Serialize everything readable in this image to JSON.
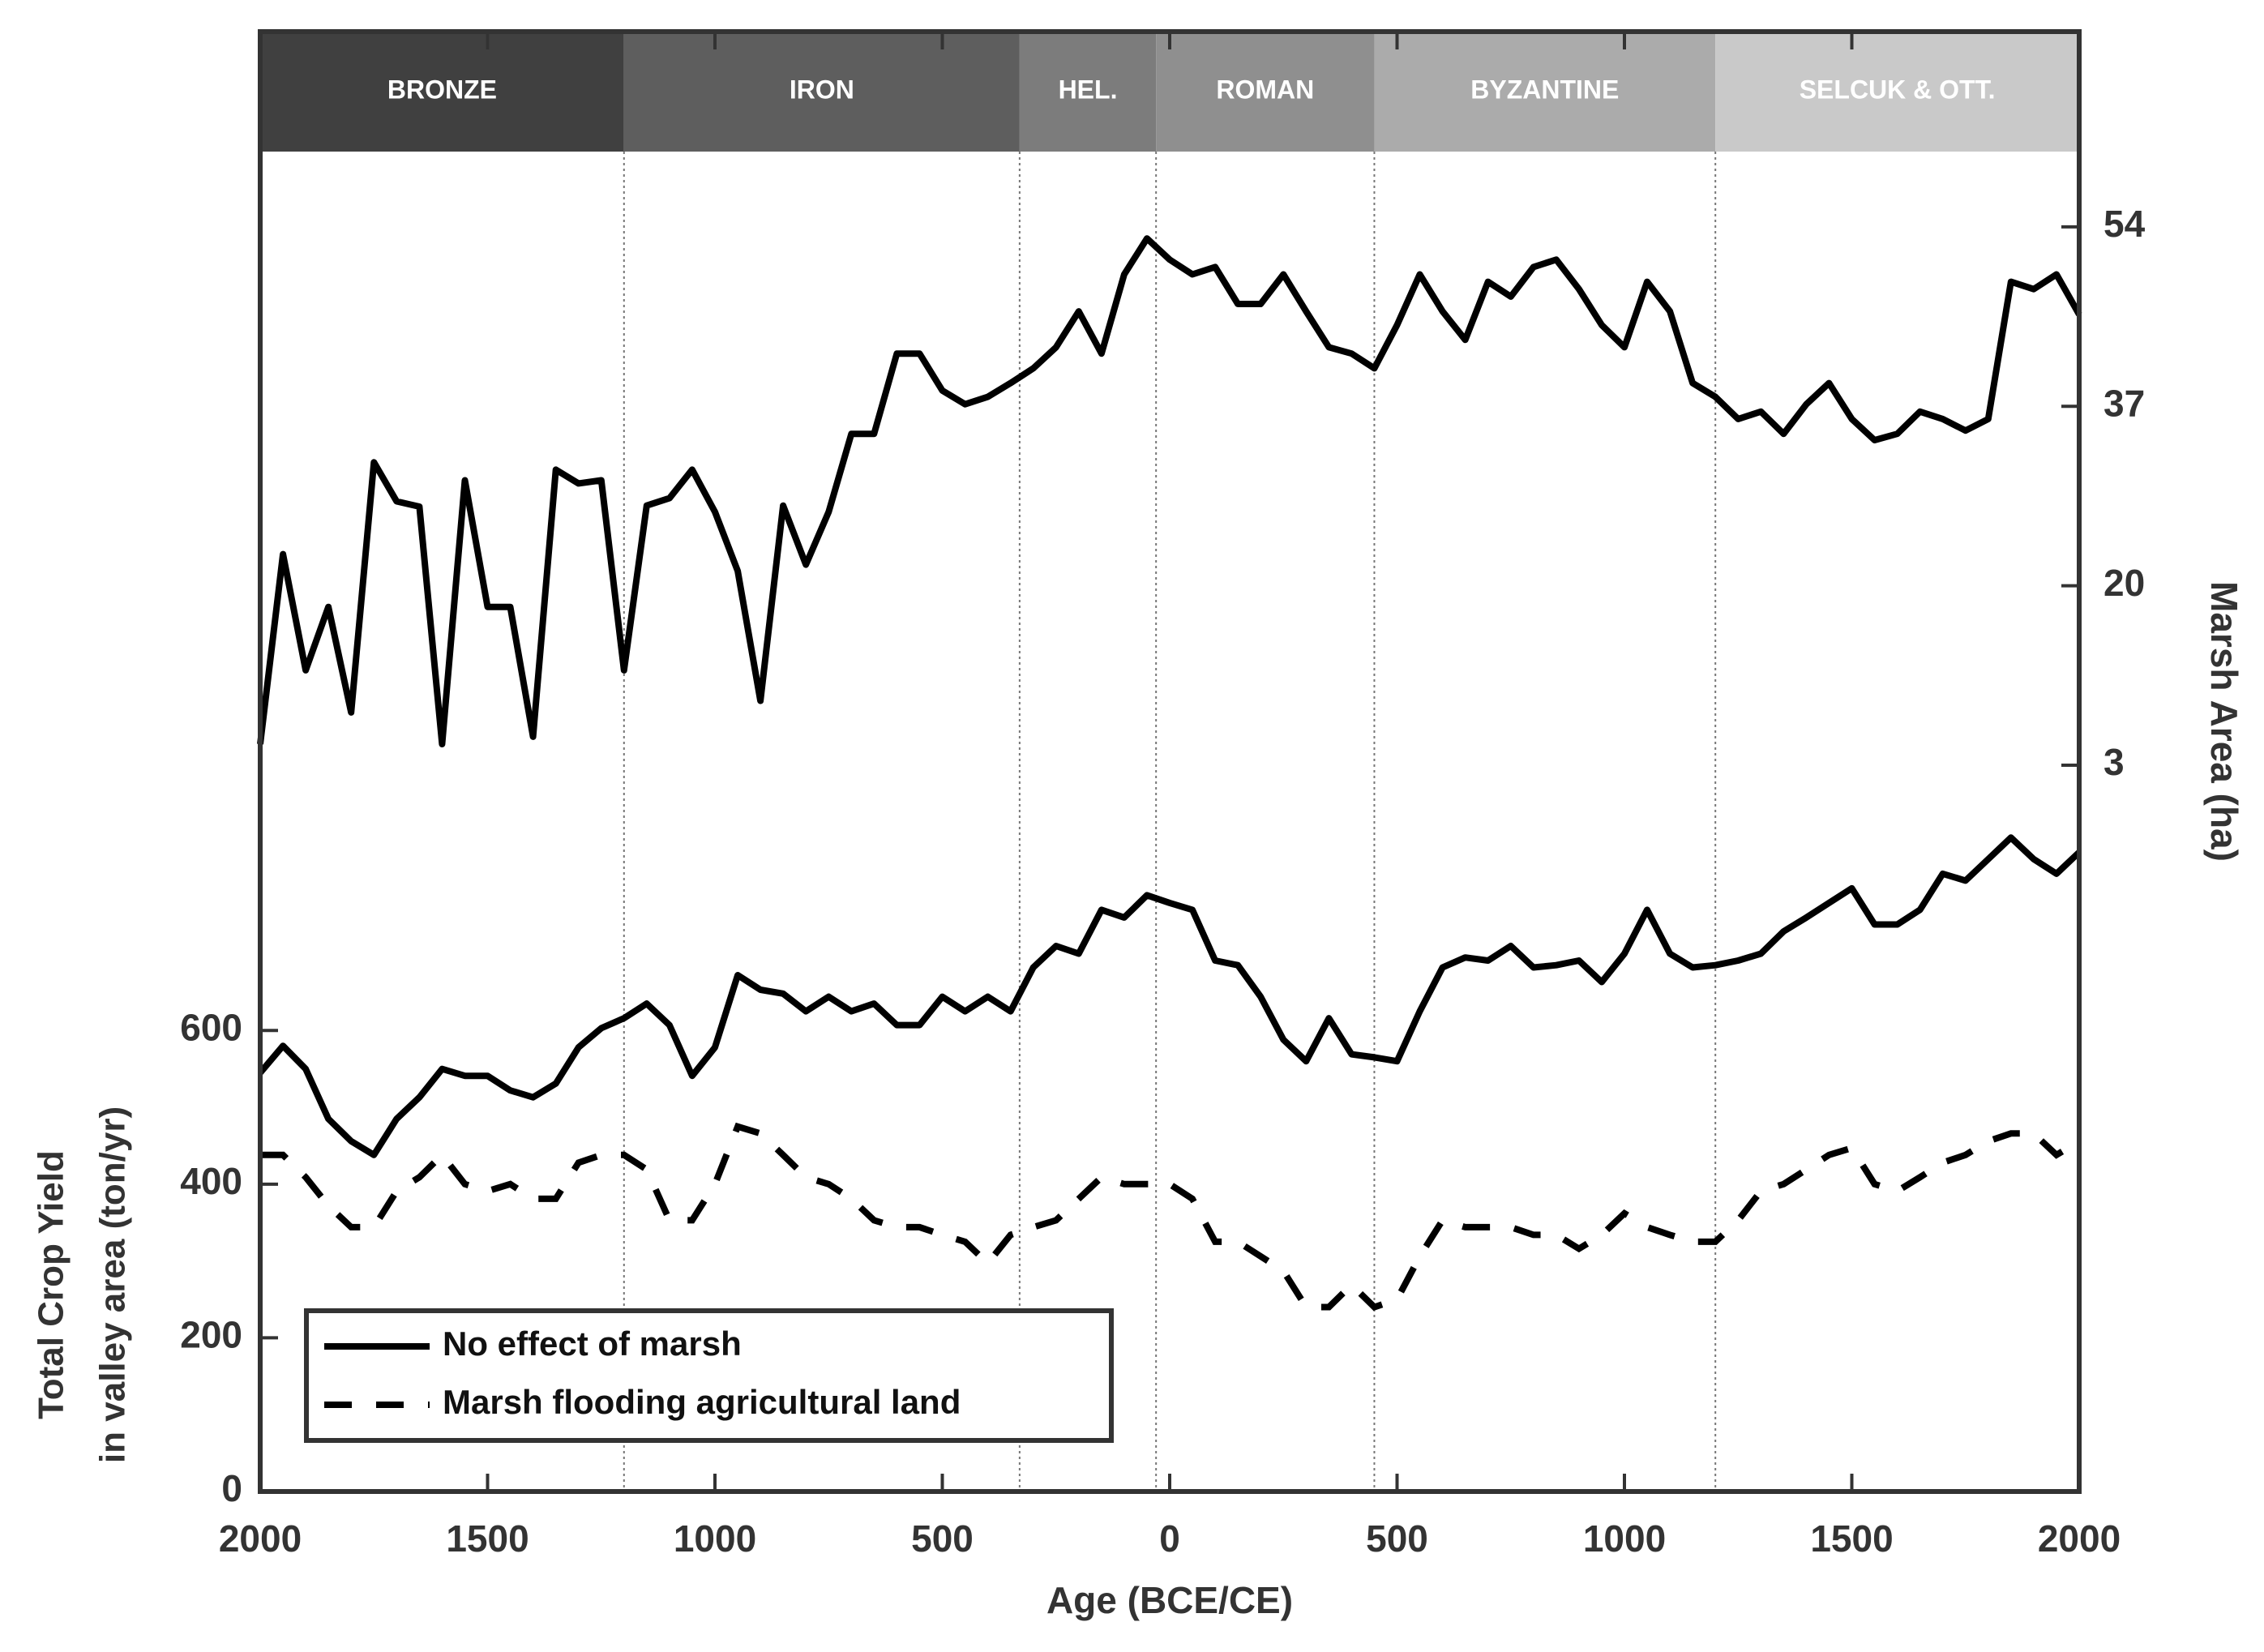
{
  "chart_data": {
    "type": "line",
    "xlabel": "Age (BCE/CE)",
    "ylabel": [
      "Total Crop Yield",
      "in valley area (ton/yr)"
    ],
    "y2label": "Marsh Area (ha)",
    "xlim": [
      -2000,
      2000
    ],
    "xticks": [
      {
        "value": -2000,
        "label": "2000"
      },
      {
        "value": -1500,
        "label": "1500"
      },
      {
        "value": -1000,
        "label": "1000"
      },
      {
        "value": -500,
        "label": "500"
      },
      0,
      500,
      1000,
      1500,
      2000
    ],
    "ylim": [
      0,
      1900
    ],
    "yticks": [
      0,
      200,
      400,
      600
    ],
    "y2lim": [
      -65.8,
      72.5
    ],
    "y2ticks": [
      3,
      20,
      37,
      54
    ],
    "periods": [
      {
        "label": "BRONZE",
        "start": -2000,
        "end": -1200,
        "color": "#404040"
      },
      {
        "label": "IRON",
        "start": -1200,
        "end": -330,
        "color": "#5e5e5e"
      },
      {
        "label": "HEL.",
        "start": -330,
        "end": -30,
        "color": "#7c7c7c"
      },
      {
        "label": "ROMAN",
        "start": -30,
        "end": 450,
        "color": "#8f8f8f"
      },
      {
        "label": "BYZANTINE",
        "start": 450,
        "end": 1200,
        "color": "#ababab"
      },
      {
        "label": "SELCUK & OTT.",
        "start": 1200,
        "end": 2000,
        "color": "#c9c9c9"
      }
    ],
    "x": [
      -2000,
      -1950,
      -1900,
      -1850,
      -1800,
      -1750,
      -1700,
      -1650,
      -1600,
      -1550,
      -1500,
      -1450,
      -1400,
      -1350,
      -1300,
      -1250,
      -1200,
      -1150,
      -1100,
      -1050,
      -1000,
      -950,
      -900,
      -850,
      -800,
      -750,
      -700,
      -650,
      -600,
      -550,
      -500,
      -450,
      -400,
      -350,
      -300,
      -250,
      -200,
      -150,
      -100,
      -50,
      0,
      50,
      100,
      150,
      200,
      250,
      300,
      350,
      400,
      450,
      500,
      550,
      600,
      650,
      700,
      750,
      800,
      850,
      900,
      950,
      1000,
      1050,
      1100,
      1150,
      1200,
      1250,
      1300,
      1350,
      1400,
      1450,
      1500,
      1550,
      1600,
      1650,
      1700,
      1750,
      1800,
      1850,
      1900,
      1950,
      2000
    ],
    "legend": "lower left",
    "series": [
      {
        "axis": "y2",
        "color": "#000000",
        "style": "solid",
        "values": [
          5.0,
          23,
          12,
          18,
          8,
          31.7,
          28,
          27.5,
          5,
          30,
          18,
          18,
          5.7,
          31,
          29.7,
          30,
          12,
          27.6,
          28.3,
          31,
          27,
          21.4,
          9.1,
          27.6,
          22,
          27,
          34.4,
          34.4,
          42,
          42,
          38.5,
          37.2,
          37.9,
          39.2,
          40.6,
          42.6,
          46,
          42,
          49.5,
          52.9,
          50.9,
          49.5,
          50.2,
          46.7,
          46.7,
          49.5,
          46,
          42.6,
          42,
          40.6,
          44.7,
          49.5,
          46,
          43.3,
          48.8,
          47.4,
          50.2,
          50.9,
          48.1,
          44.7,
          42.6,
          48.8,
          46,
          39.2,
          37.9,
          35.8,
          36.5,
          34.4,
          37.2,
          39.2,
          35.8,
          33.8,
          34.4,
          36.5,
          35.8,
          34.7,
          35.8,
          48.8,
          48.1,
          49.5,
          45.7
        ]
      },
      {
        "name": "No effect of marsh",
        "color": "#000000",
        "style": "solid",
        "values": [
          545,
          580,
          550,
          485,
          456,
          438,
          485,
          513,
          550,
          541,
          541,
          522,
          513,
          531,
          578,
          603,
          616,
          635,
          607,
          541,
          578,
          672,
          653,
          648,
          625,
          644,
          625,
          635,
          607,
          607,
          644,
          625,
          644,
          625,
          682,
          710,
          700,
          757,
          747,
          776,
          766,
          757,
          691,
          685,
          644,
          588,
          560,
          616,
          569,
          565,
          560,
          625,
          682,
          695,
          691,
          710,
          682,
          685,
          691,
          663,
          700,
          757,
          700,
          682,
          685,
          691,
          700,
          729,
          747,
          766,
          785,
          738,
          738,
          757,
          804,
          795,
          823,
          851,
          823,
          804,
          832
        ]
      },
      {
        "name": "Marsh flooding agricultural land",
        "color": "#000000",
        "style": "dashed",
        "values": [
          438,
          438,
          409,
          372,
          344,
          344,
          391,
          409,
          438,
          400,
          391,
          400,
          381,
          381,
          428,
          438,
          438,
          419,
          353,
          353,
          400,
          475,
          466,
          438,
          409,
          400,
          381,
          353,
          344,
          344,
          334,
          325,
          297,
          334,
          344,
          353,
          381,
          409,
          400,
          400,
          400,
          381,
          325,
          325,
          306,
          287,
          240,
          240,
          269,
          240,
          250,
          306,
          353,
          344,
          344,
          344,
          334,
          334,
          316,
          334,
          362,
          344,
          334,
          325,
          325,
          353,
          391,
          400,
          419,
          438,
          447,
          400,
          391,
          409,
          428,
          438,
          456,
          466,
          466,
          438,
          456
        ]
      }
    ]
  }
}
